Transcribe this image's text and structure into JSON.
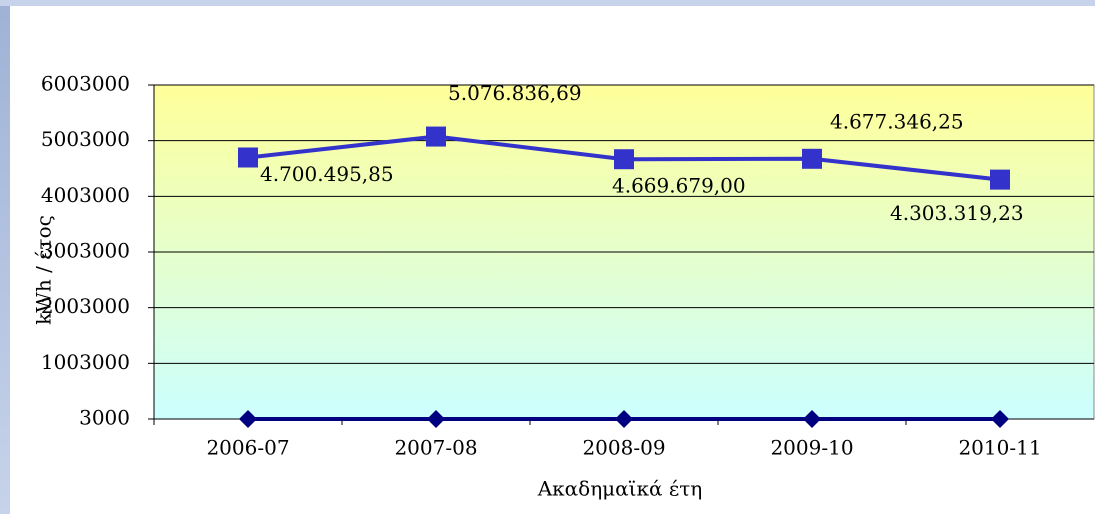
{
  "chart_data": {
    "type": "line",
    "categories": [
      "2006-07",
      "2007-08",
      "2008-09",
      "2009-10",
      "2010-11"
    ],
    "series": [
      {
        "color": "#3333cc",
        "marker": "square",
        "values": [
          4700495.85,
          5076836.69,
          4669679.0,
          4677346.25,
          4303319.23
        ],
        "value_labels": [
          "4.700.495,85",
          "5.076.836,69",
          "4.669.679,00",
          "4.677.346,25",
          "4.303.319,23"
        ]
      },
      {
        "color": "#000080",
        "marker": "diamond",
        "values": [
          3000,
          3000,
          3000,
          3000,
          3000
        ]
      }
    ],
    "ylim": [
      3000,
      6003000
    ],
    "yticks": [
      3000,
      1003000,
      2003000,
      3003000,
      4003000,
      5003000,
      6003000
    ],
    "ylabel": "kWh / έτος",
    "xlabel": "Ακαδημαϊκά έτη",
    "grid": true
  }
}
